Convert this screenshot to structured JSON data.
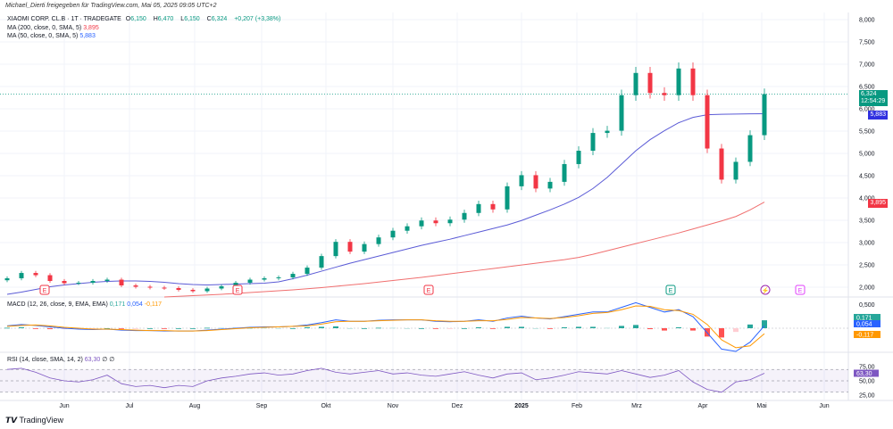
{
  "header": {
    "attribution": "Michael_Dierti freigegeben für TradingView.com, Mai 05, 2025 09:05 UTC+2"
  },
  "legend": {
    "symbol": "XIAOMI CORP. CL.B · 1T · TRADEGATE",
    "o_label": "O",
    "o": "6,150",
    "h_label": "H",
    "h": "6,470",
    "l_label": "L",
    "l": "6,150",
    "c_label": "C",
    "c": "6,324",
    "change": "+0,207 (+3,38%)",
    "ma200_label": "MA (200, close, 0, SMA, 5)",
    "ma200_value": "3,895",
    "ma50_label": "MA (50, close, 0, SMA, 5)",
    "ma50_value": "5,883",
    "macd_label": "MACD (12, 26, close, 9, EMA, EMA)",
    "macd_hist": "0,171",
    "macd_macd": "0,054",
    "macd_signal": "-0,117",
    "rsi_label": "RSI (14, close, SMA, 14, 2)",
    "rsi_value": "63,30",
    "rsi_extra": "∅ ∅"
  },
  "price_tags": {
    "last": "6,324",
    "countdown": "12:54:29",
    "ma50": "5,883",
    "ma200": "3,895"
  },
  "footer": {
    "logo": "TradingView"
  },
  "colors": {
    "up": "#089981",
    "down": "#f23645",
    "ma50": "#5b5bd6",
    "ma200": "#f06f6f",
    "macd": "#2962ff",
    "signal": "#ff9800",
    "rsi": "#7e57c2"
  },
  "events": [
    {
      "label": "E",
      "color": "#f23645",
      "date": "Mai"
    },
    {
      "label": "E",
      "color": "#f23645",
      "date": "Aug"
    },
    {
      "label": "E",
      "color": "#f23645",
      "date": "Nov"
    },
    {
      "label": "E",
      "color": "#089981",
      "date": "Mrz"
    },
    {
      "label": "⚡",
      "color": "#9c27b0",
      "date": "Mai"
    },
    {
      "label": "E",
      "color": "#e040fb",
      "date": "Mai"
    }
  ],
  "chart_data": {
    "type": "candlestick",
    "x_ticks": [
      "Jun",
      "Jul",
      "Aug",
      "Sep",
      "Okt",
      "Nov",
      "Dez",
      "2025",
      "Feb",
      "Mrz",
      "Apr",
      "Mai",
      "Jun"
    ],
    "price_axis": {
      "ticks": [
        "8,000",
        "7,500",
        "7,000",
        "6,500",
        "6,000",
        "5,500",
        "5,000",
        "4,500",
        "4,000",
        "3,500",
        "3,000",
        "2,500",
        "2,000"
      ],
      "ylim": [
        2000,
        8000
      ]
    },
    "closes": [
      2180,
      2300,
      2250,
      2120,
      2070,
      2080,
      2120,
      2150,
      2020,
      1990,
      1970,
      1960,
      1920,
      1890,
      1950,
      2000,
      2080,
      2150,
      2180,
      2200,
      2280,
      2420,
      2680,
      3000,
      2780,
      2950,
      3100,
      3250,
      3350,
      3480,
      3420,
      3500,
      3650,
      3850,
      3730,
      4250,
      4500,
      4200,
      4350,
      4750,
      5050,
      5450,
      5500,
      6300,
      6800,
      6350,
      6300,
      6900,
      6300,
      5100,
      4400,
      4800,
      5400,
      6324
    ],
    "ma50": [
      1820,
      1870,
      1930,
      1990,
      2030,
      2060,
      2090,
      2110,
      2120,
      2120,
      2110,
      2090,
      2060,
      2040,
      2030,
      2040,
      2050,
      2060,
      2070,
      2100,
      2170,
      2250,
      2340,
      2430,
      2520,
      2600,
      2680,
      2760,
      2840,
      2920,
      2990,
      3060,
      3140,
      3220,
      3300,
      3380,
      3480,
      3600,
      3720,
      3850,
      4000,
      4200,
      4450,
      4750,
      5050,
      5300,
      5500,
      5680,
      5800,
      5860,
      5870,
      5875,
      5880,
      5883
    ],
    "ma200": [
      null,
      null,
      null,
      null,
      null,
      null,
      null,
      null,
      null,
      null,
      null,
      1760,
      1775,
      1790,
      1805,
      1820,
      1840,
      1860,
      1880,
      1900,
      1920,
      1945,
      1970,
      2000,
      2030,
      2060,
      2095,
      2130,
      2165,
      2200,
      2240,
      2280,
      2320,
      2360,
      2400,
      2440,
      2480,
      2520,
      2560,
      2600,
      2650,
      2720,
      2800,
      2880,
      2960,
      3040,
      3120,
      3200,
      3290,
      3380,
      3470,
      3570,
      3720,
      3895
    ],
    "macd": {
      "axis_ticks": [
        "0,500"
      ],
      "macd": [
        0.05,
        0.08,
        0.06,
        0.03,
        0,
        -0.02,
        -0.03,
        -0.02,
        -0.04,
        -0.05,
        -0.05,
        -0.06,
        -0.06,
        -0.06,
        -0.04,
        -0.02,
        0,
        0.02,
        0.03,
        0.03,
        0.04,
        0.07,
        0.12,
        0.18,
        0.15,
        0.15,
        0.17,
        0.18,
        0.18,
        0.18,
        0.15,
        0.14,
        0.15,
        0.18,
        0.15,
        0.22,
        0.26,
        0.22,
        0.2,
        0.25,
        0.3,
        0.35,
        0.35,
        0.45,
        0.55,
        0.45,
        0.35,
        0.4,
        0.25,
        -0.1,
        -0.45,
        -0.5,
        -0.3,
        0.054
      ],
      "signal": [
        0.04,
        0.06,
        0.07,
        0.05,
        0.02,
        0,
        -0.02,
        -0.02,
        -0.03,
        -0.04,
        -0.05,
        -0.05,
        -0.06,
        -0.06,
        -0.05,
        -0.03,
        -0.01,
        0.01,
        0.02,
        0.03,
        0.04,
        0.05,
        0.09,
        0.14,
        0.15,
        0.15,
        0.16,
        0.17,
        0.18,
        0.18,
        0.16,
        0.15,
        0.15,
        0.16,
        0.16,
        0.19,
        0.23,
        0.22,
        0.21,
        0.23,
        0.27,
        0.32,
        0.34,
        0.4,
        0.48,
        0.47,
        0.4,
        0.38,
        0.3,
        0.08,
        -0.25,
        -0.42,
        -0.38,
        -0.117
      ]
    },
    "rsi": {
      "axis_ticks": [
        "75,00",
        "50,00",
        "25,00"
      ],
      "bands": [
        70,
        30
      ],
      "values": [
        70,
        72,
        65,
        55,
        50,
        48,
        52,
        60,
        45,
        40,
        42,
        38,
        42,
        40,
        50,
        55,
        58,
        62,
        64,
        60,
        62,
        68,
        72,
        65,
        62,
        65,
        68,
        62,
        64,
        60,
        58,
        62,
        66,
        60,
        55,
        62,
        64,
        52,
        55,
        60,
        66,
        64,
        62,
        68,
        62,
        56,
        60,
        68,
        48,
        35,
        30,
        48,
        52,
        63.3
      ]
    }
  }
}
